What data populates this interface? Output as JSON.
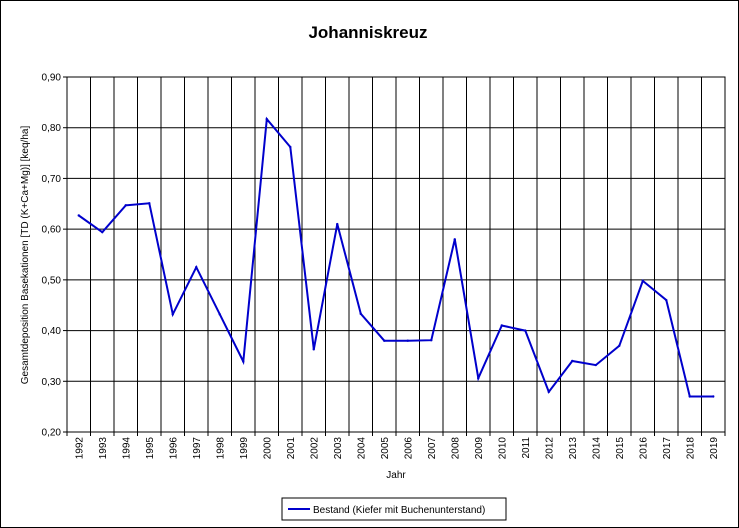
{
  "chart_data": {
    "type": "line",
    "title": "Johanniskreuz",
    "xlabel": "Jahr",
    "ylabel": "Gesamtdeposition Basekationen [TD (K+Ca+Mg)] [keq/ha]",
    "categories": [
      "1992",
      "1993",
      "1994",
      "1995",
      "1996",
      "1997",
      "1998",
      "1999",
      "2000",
      "2001",
      "2002",
      "2003",
      "2004",
      "2005",
      "2006",
      "2007",
      "2008",
      "2009",
      "2010",
      "2011",
      "2012",
      "2013",
      "2014",
      "2015",
      "2016",
      "2017",
      "2018",
      "2019"
    ],
    "series": [
      {
        "name": "Bestand (Kiefer mit Buchenunterstand)",
        "color": "#0000cc",
        "values": [
          0.627,
          0.594,
          0.647,
          0.651,
          0.432,
          0.525,
          0.432,
          0.339,
          0.817,
          0.762,
          0.363,
          0.61,
          0.433,
          0.38,
          0.38,
          0.381,
          0.58,
          0.306,
          0.41,
          0.4,
          0.279,
          0.34,
          0.332,
          0.37,
          0.498,
          0.46,
          0.27,
          0.27
        ]
      }
    ],
    "ylim": [
      0.2,
      0.9
    ],
    "yticks": [
      "0,20",
      "0,30",
      "0,40",
      "0,50",
      "0,60",
      "0,70",
      "0,80",
      "0,90"
    ],
    "grid": true,
    "legend_position": "bottom-center"
  }
}
